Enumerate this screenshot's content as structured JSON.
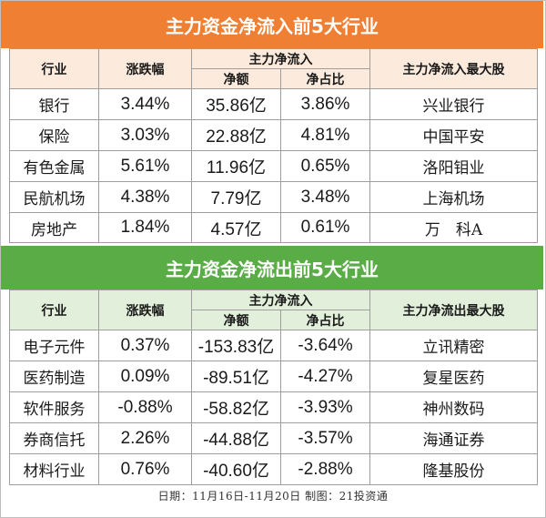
{
  "inflow": {
    "title": "主力资金净流入前5大行业",
    "headers": {
      "industry": "行业",
      "change": "涨跌幅",
      "group": "主力净流入",
      "net": "净额",
      "ratio": "净占比",
      "top_stock": "主力净流入最大股"
    },
    "rows": [
      {
        "industry": "银行",
        "change": "3.44%",
        "net": "35.86亿",
        "ratio": "3.86%",
        "stock": "兴业银行"
      },
      {
        "industry": "保险",
        "change": "3.03%",
        "net": "22.88亿",
        "ratio": "4.81%",
        "stock": "中国平安"
      },
      {
        "industry": "有色金属",
        "change": "5.61%",
        "net": "11.96亿",
        "ratio": "0.65%",
        "stock": "洛阳钼业"
      },
      {
        "industry": "民航机场",
        "change": "4.38%",
        "net": "7.79亿",
        "ratio": "3.48%",
        "stock": "上海机场"
      },
      {
        "industry": "房地产",
        "change": "1.84%",
        "net": "4.57亿",
        "ratio": "0.61%",
        "stock": "万　科A"
      }
    ]
  },
  "outflow": {
    "title": "主力资金净流出前5大行业",
    "headers": {
      "industry": "行业",
      "change": "涨跌幅",
      "group": "主力净流入",
      "net": "净额",
      "ratio": "净占比",
      "top_stock": "主力净流出最大股"
    },
    "rows": [
      {
        "industry": "电子元件",
        "change": "0.37%",
        "net": "-153.83亿",
        "ratio": "-3.64%",
        "stock": "立讯精密"
      },
      {
        "industry": "医药制造",
        "change": "0.09%",
        "net": "-89.51亿",
        "ratio": "-4.27%",
        "stock": "复星医药"
      },
      {
        "industry": "软件服务",
        "change": "-0.88%",
        "net": "-58.82亿",
        "ratio": "-3.93%",
        "stock": "神州数码"
      },
      {
        "industry": "券商信托",
        "change": "2.26%",
        "net": "-44.88亿",
        "ratio": "-3.57%",
        "stock": "海通证券"
      },
      {
        "industry": "材料行业",
        "change": "0.76%",
        "net": "-40.60亿",
        "ratio": "-2.88%",
        "stock": "隆基股份"
      }
    ]
  },
  "footer": "日期：11月16日-11月20日 制图：21投资通",
  "colors": {
    "inflow_banner": "#ef7f33",
    "inflow_header": "#fcebdc",
    "outflow_banner": "#5aac46",
    "outflow_header": "#e2efda"
  }
}
